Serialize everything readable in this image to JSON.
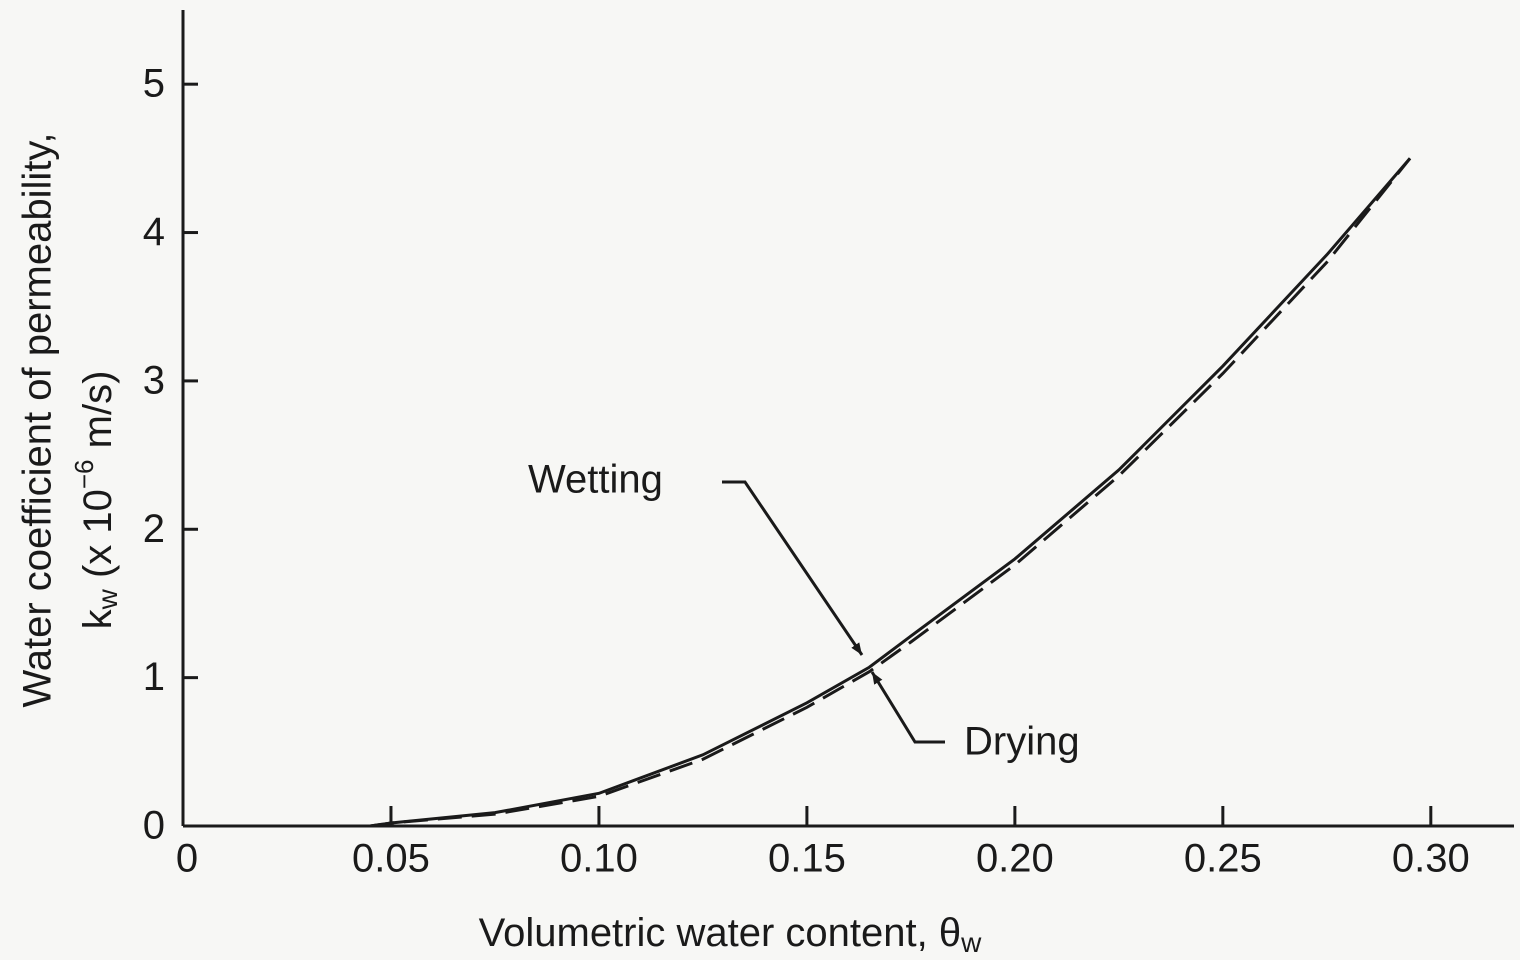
{
  "chart_data": {
    "type": "line",
    "x_label": "Volumetric water content, θ",
    "x_label_subscript": "w",
    "y_label_line1": "Water coefficient of permeability,",
    "y_label_symbol": "k",
    "y_label_subscript": "w",
    "y_label_unit_start": " (x 10",
    "y_label_exponent": "−6",
    "y_label_unit_end": " m/s)",
    "xlim": [
      0,
      0.32
    ],
    "ylim": [
      0,
      5.5
    ],
    "xticks": [
      0,
      0.05,
      {
        "value": 0.1,
        "label": "0.10"
      },
      0.15,
      {
        "value": 0.2,
        "label": "0.20"
      },
      0.25,
      {
        "value": 0.3,
        "label": "0.30"
      }
    ],
    "yticks": [
      0,
      1,
      2,
      3,
      4,
      5
    ],
    "grid": false,
    "series": [
      {
        "name": "Wetting",
        "color": "#1a1a1a",
        "dash": false,
        "x": [
          0.045,
          0.05,
          0.075,
          0.1,
          0.125,
          0.15,
          0.165,
          0.175,
          0.2,
          0.225,
          0.25,
          0.275,
          0.295
        ],
        "values": [
          0,
          0.02,
          0.09,
          0.22,
          0.48,
          0.83,
          1.07,
          1.28,
          1.8,
          2.4,
          3.1,
          3.85,
          4.5
        ]
      },
      {
        "name": "Drying",
        "color": "#1a1a1a",
        "dash": true,
        "x": [
          0.045,
          0.05,
          0.075,
          0.1,
          0.125,
          0.15,
          0.165,
          0.175,
          0.2,
          0.225,
          0.25,
          0.275,
          0.295
        ],
        "values": [
          0,
          0.02,
          0.08,
          0.2,
          0.45,
          0.8,
          1.04,
          1.24,
          1.76,
          2.36,
          3.05,
          3.8,
          4.5
        ]
      }
    ]
  }
}
